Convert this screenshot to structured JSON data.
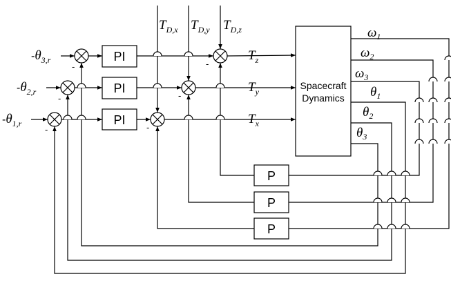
{
  "blocks": {
    "pi": "PI",
    "p": "P",
    "plant_line1": "Spacecraft",
    "plant_line2": "Dynamics"
  },
  "references": [
    {
      "prefix": "-",
      "symbol": "θ",
      "sub": "3,r"
    },
    {
      "prefix": "-",
      "symbol": "θ",
      "sub": "2,r"
    },
    {
      "prefix": "-",
      "symbol": "θ",
      "sub": "1,r"
    }
  ],
  "disturbances": [
    {
      "symbol": "T",
      "sub": "D,x"
    },
    {
      "symbol": "T",
      "sub": "D,y"
    },
    {
      "symbol": "T",
      "sub": "D,z"
    }
  ],
  "torques": [
    {
      "symbol": "T",
      "sub": "z"
    },
    {
      "symbol": "T",
      "sub": "y"
    },
    {
      "symbol": "T",
      "sub": "x"
    }
  ],
  "outputs": [
    {
      "symbol": "ω",
      "sub": "1"
    },
    {
      "symbol": "ω",
      "sub": "2"
    },
    {
      "symbol": "ω",
      "sub": "3"
    },
    {
      "symbol": "θ",
      "sub": "1"
    },
    {
      "symbol": "θ",
      "sub": "2"
    },
    {
      "symbol": "θ",
      "sub": "3"
    }
  ],
  "sign_minus": "-",
  "sum_symbol": "⊗"
}
